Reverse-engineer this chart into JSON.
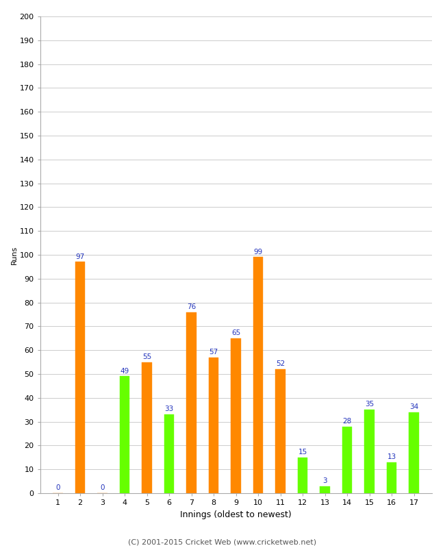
{
  "xlabel": "Innings (oldest to newest)",
  "ylabel": "Runs",
  "ylim": [
    0,
    200
  ],
  "yticks": [
    0,
    10,
    20,
    30,
    40,
    50,
    60,
    70,
    80,
    90,
    100,
    110,
    120,
    130,
    140,
    150,
    160,
    170,
    180,
    190,
    200
  ],
  "innings": [
    1,
    2,
    3,
    4,
    5,
    6,
    7,
    8,
    9,
    10,
    11,
    12,
    13,
    14,
    15,
    16,
    17
  ],
  "values": [
    0,
    97,
    0,
    49,
    55,
    33,
    76,
    57,
    65,
    99,
    52,
    15,
    3,
    28,
    35,
    13,
    34
  ],
  "colors": [
    "#ff8800",
    "#ff8800",
    "#ff8800",
    "#66ff00",
    "#ff8800",
    "#66ff00",
    "#ff8800",
    "#ff8800",
    "#ff8800",
    "#ff8800",
    "#ff8800",
    "#66ff00",
    "#66ff00",
    "#66ff00",
    "#66ff00",
    "#66ff00",
    "#66ff00"
  ],
  "label_color": "#2233bb",
  "bar_width": 0.45,
  "background_color": "#ffffff",
  "footer": "(C) 2001-2015 Cricket Web (www.cricketweb.net)",
  "footer_color": "#555555",
  "grid_color": "#cccccc",
  "spine_color": "#aaaaaa"
}
